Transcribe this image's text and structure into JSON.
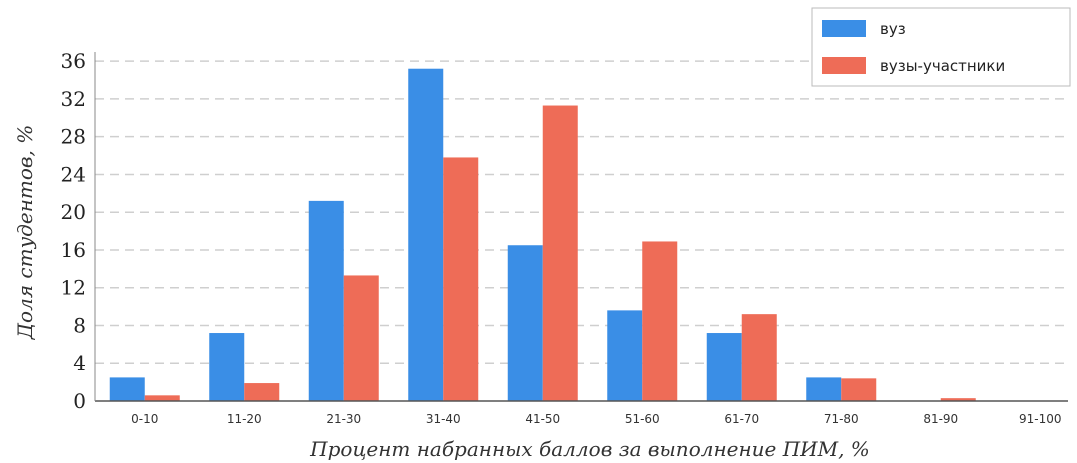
{
  "chart_data": {
    "type": "bar",
    "title": "",
    "xlabel": "Процент набранных баллов за выполнение ПИМ, %",
    "ylabel": "Доля студентов, %",
    "ylim": [
      0,
      37
    ],
    "yticks": [
      0,
      4,
      8,
      12,
      16,
      20,
      24,
      28,
      32,
      36
    ],
    "grid": "horizontal-dashed",
    "legend_position": "top-right",
    "categories": [
      "0-10",
      "11-20",
      "21-30",
      "31-40",
      "41-50",
      "51-60",
      "61-70",
      "71-80",
      "81-90",
      "91-100"
    ],
    "series": [
      {
        "name": "вуз",
        "color": "#3a8ee6",
        "values": [
          2.5,
          7.2,
          21.2,
          35.2,
          16.5,
          9.6,
          7.2,
          2.5,
          0,
          0
        ]
      },
      {
        "name": "вузы-участники",
        "color": "#ee6c57",
        "values": [
          0.6,
          1.9,
          13.3,
          25.8,
          31.3,
          16.9,
          9.2,
          2.4,
          0.3,
          0
        ]
      }
    ]
  }
}
